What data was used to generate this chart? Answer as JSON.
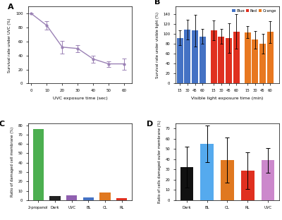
{
  "A": {
    "x": [
      0,
      10,
      20,
      30,
      40,
      50,
      60
    ],
    "y": [
      100,
      83,
      52,
      50,
      35,
      28,
      28
    ],
    "yerr": [
      0,
      6,
      9,
      5,
      5,
      4,
      8
    ],
    "color": "#9b82b5",
    "xlabel": "UVC exposure time (sec)",
    "ylabel": "Survival rate under UVC (%)",
    "label": "A",
    "ylim": [
      0,
      110
    ],
    "xlim": [
      -2,
      65
    ]
  },
  "B": {
    "groups": [
      "15",
      "30",
      "45",
      "60"
    ],
    "blue_vals": [
      92,
      108,
      107,
      95
    ],
    "blue_err": [
      15,
      20,
      32,
      15
    ],
    "red_vals": [
      107,
      95,
      92,
      105
    ],
    "red_err": [
      20,
      15,
      30,
      35
    ],
    "orange_vals": [
      103,
      88,
      80,
      104
    ],
    "orange_err": [
      12,
      18,
      20,
      22
    ],
    "blue_color": "#4472c4",
    "red_color": "#e03020",
    "orange_color": "#e87820",
    "xlabel": "Visible light exposure time (min)",
    "ylabel": "Survival rate under visible light (%)",
    "label": "B",
    "ylim": [
      0,
      155
    ],
    "legend_labels": [
      "Blue",
      "Red",
      "Orange"
    ]
  },
  "C": {
    "categories": [
      "2-propanol",
      "Dark",
      "UVC",
      "BL",
      "OL",
      "RL"
    ],
    "values": [
      76,
      4.5,
      5,
      3,
      8,
      2.5
    ],
    "colors": [
      "#4caf50",
      "#222222",
      "#9060b0",
      "#4472c4",
      "#e07820",
      "#e03020"
    ],
    "xlabel": "",
    "ylabel": "Ratio of damaged cell membrane (%)",
    "label": "C",
    "ylim": [
      0,
      82
    ]
  },
  "D": {
    "categories": [
      "Dark",
      "BL",
      "OL",
      "RL",
      "UVC"
    ],
    "values": [
      32,
      55,
      39,
      29,
      39
    ],
    "errors": [
      20,
      18,
      22,
      18,
      12
    ],
    "colors": [
      "#111111",
      "#55aaee",
      "#e07820",
      "#e03020",
      "#cc88cc"
    ],
    "xlabel": "",
    "ylabel": "Ratio of cells damaged outer membrane (%)",
    "label": "D",
    "ylim": [
      0,
      75
    ]
  },
  "fig_background": "#ffffff",
  "panel_background": "#ffffff"
}
